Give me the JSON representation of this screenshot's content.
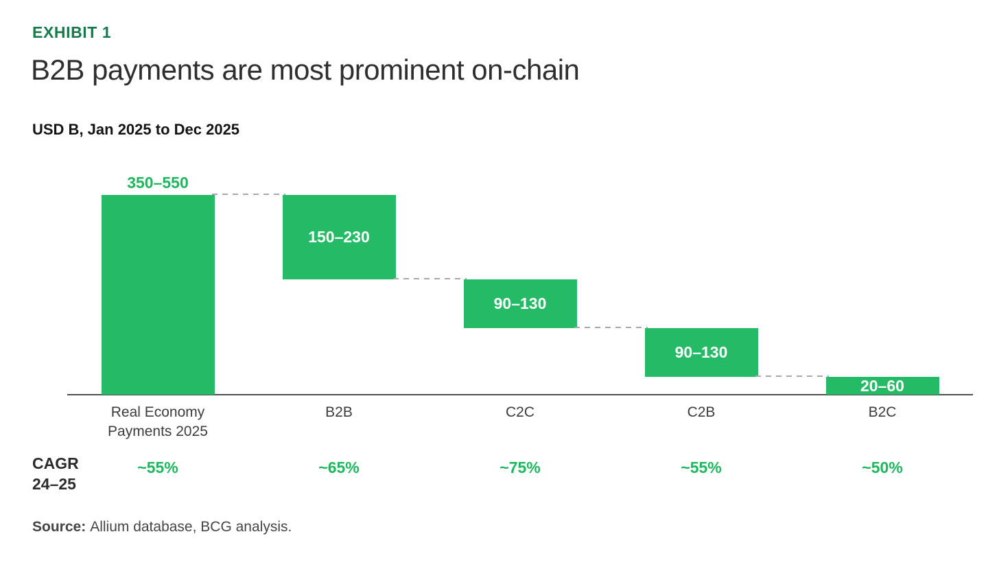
{
  "header": {
    "exhibit_label": "EXHIBIT 1",
    "title": "B2B payments are most prominent on-chain",
    "subtitle": "USD B, Jan 2025 to Dec 2025"
  },
  "cagr": {
    "label_line1": "CAGR",
    "label_line2": "24–25"
  },
  "footer": {
    "source_prefix": "Source:",
    "source_text": "Allium database, BCG analysis."
  },
  "colors": {
    "bar_green": "#25ba66",
    "text_green": "#1fb75e",
    "exhibit_green": "#177a4c",
    "axis_line": "#4d4d4d",
    "connector_gray": "#a8a8a8"
  },
  "chart_data": {
    "type": "bar",
    "subtype": "waterfall",
    "title": "B2B payments are most prominent on-chain",
    "units_label": "USD B, Jan 2025 to Dec 2025",
    "categories": [
      [
        "Real Economy",
        "Payments 2025"
      ],
      [
        "B2B"
      ],
      [
        "C2C"
      ],
      [
        "C2B"
      ],
      [
        "B2C"
      ]
    ],
    "value_labels": [
      "350–550",
      "150–230",
      "90–130",
      "90–130",
      "20–60"
    ],
    "ranges": [
      [
        350,
        550
      ],
      [
        150,
        230
      ],
      [
        90,
        130
      ],
      [
        90,
        130
      ],
      [
        20,
        60
      ]
    ],
    "midpoints": [
      450,
      190,
      110,
      110,
      40
    ],
    "cagr_values": [
      "~55%",
      "~65%",
      "~75%",
      "~55%",
      "~50%"
    ],
    "first_bar_is_total": true,
    "grid": false,
    "legend": false,
    "connector_style": "dashed"
  }
}
